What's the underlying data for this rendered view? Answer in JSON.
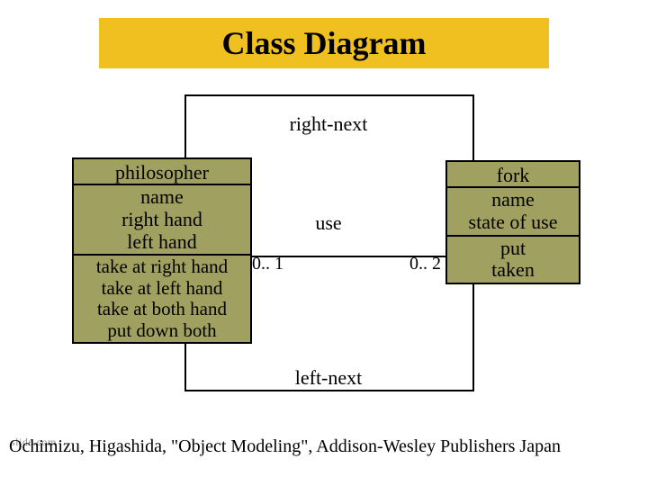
{
  "title": "Class Diagram",
  "outer_box": {
    "border_color": "#000000",
    "border_width": 2
  },
  "labels": {
    "right_next": "right-next",
    "left_next": "left-next",
    "association": "use",
    "mult_left": "0.. 1",
    "mult_right": "0.. 2"
  },
  "classes": {
    "philosopher": {
      "name": "philosopher",
      "attributes": [
        "name",
        "right hand",
        "left hand"
      ],
      "operations": [
        "take at right hand",
        "take at left hand",
        "take at both hand",
        "put down both"
      ],
      "fill_color": "#a0a060",
      "border_color": "#000000",
      "font_size": 22
    },
    "fork": {
      "name": "fork",
      "attributes": [
        "name",
        "state of use"
      ],
      "operations": [
        "put",
        "taken"
      ],
      "fill_color": "#a0a060",
      "border_color": "#000000",
      "font_size": 22
    }
  },
  "colors": {
    "title_bg": "#f0c020",
    "title_fg": "#000000",
    "page_bg": "#ffffff",
    "class_fill": "#a0a060",
    "line": "#000000",
    "slide_note": "#909090"
  },
  "typography": {
    "family": "Times New Roman, serif",
    "title_size": 36,
    "body_size": 22,
    "citation_size": 20
  },
  "citation": "Ochimizu, Higashida, \"Object Modeling\", Addison-Wesley Publishers Japan",
  "slide_note": "slide.com"
}
